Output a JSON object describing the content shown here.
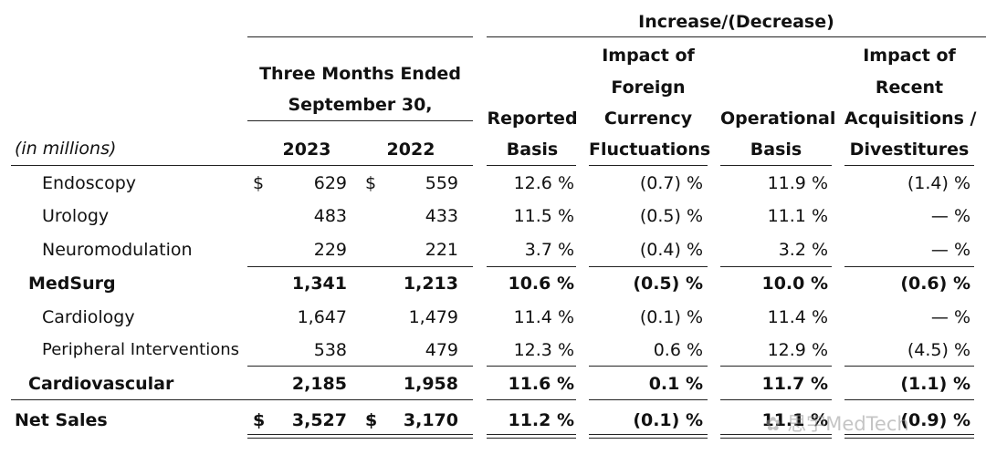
{
  "header": {
    "increase_group": "Increase/(Decrease)",
    "period_line1": "Three Months Ended",
    "period_line2": "September 30,",
    "units": "(in millions)",
    "year_current": "2023",
    "year_prior": "2022",
    "reported": [
      "Reported",
      "Basis"
    ],
    "fx": [
      "Impact of",
      "Foreign",
      "Currency",
      "Fluctuations"
    ],
    "operational": [
      "Operational",
      "Basis"
    ],
    "acq": [
      "Impact of",
      "Recent",
      "Acquisitions /",
      "Divestitures"
    ]
  },
  "rows": [
    {
      "label": "Endoscopy",
      "cur_sym": "$",
      "cur": "629",
      "prior_sym": "$",
      "prior": "559",
      "reported": "12.6 %",
      "fx": "(0.7) %",
      "operational": "11.9 %",
      "acq": "(1.4) %"
    },
    {
      "label": "Urology",
      "cur_sym": "",
      "cur": "483",
      "prior_sym": "",
      "prior": "433",
      "reported": "11.5 %",
      "fx": "(0.5) %",
      "operational": "11.1 %",
      "acq": "— %"
    },
    {
      "label": "Neuromodulation",
      "cur_sym": "",
      "cur": "229",
      "prior_sym": "",
      "prior": "221",
      "reported": "3.7 %",
      "fx": "(0.4) %",
      "operational": "3.2 %",
      "acq": "— %"
    },
    {
      "label": "MedSurg",
      "cur_sym": "",
      "cur": "1,341",
      "prior_sym": "",
      "prior": "1,213",
      "reported": "10.6 %",
      "fx": "(0.5) %",
      "operational": "10.0 %",
      "acq": "(0.6) %"
    },
    {
      "label": "Cardiology",
      "cur_sym": "",
      "cur": "1,647",
      "prior_sym": "",
      "prior": "1,479",
      "reported": "11.4 %",
      "fx": "(0.1) %",
      "operational": "11.4 %",
      "acq": "— %"
    },
    {
      "label": "Peripheral Interventions",
      "cur_sym": "",
      "cur": "538",
      "prior_sym": "",
      "prior": "479",
      "reported": "12.3 %",
      "fx": "0.6 %",
      "operational": "12.9 %",
      "acq": "(4.5) %"
    },
    {
      "label": "Cardiovascular",
      "cur_sym": "",
      "cur": "2,185",
      "prior_sym": "",
      "prior": "1,958",
      "reported": "11.6 %",
      "fx": "0.1 %",
      "operational": "11.7 %",
      "acq": "(1.1) %"
    },
    {
      "label": "Net Sales",
      "cur_sym": "$",
      "cur": "3,527",
      "prior_sym": "$",
      "prior": "3,170",
      "reported": "11.2 %",
      "fx": "(0.1) %",
      "operational": "11.1 %",
      "acq": "(0.9) %"
    }
  ],
  "watermark": "思宇MedTech"
}
